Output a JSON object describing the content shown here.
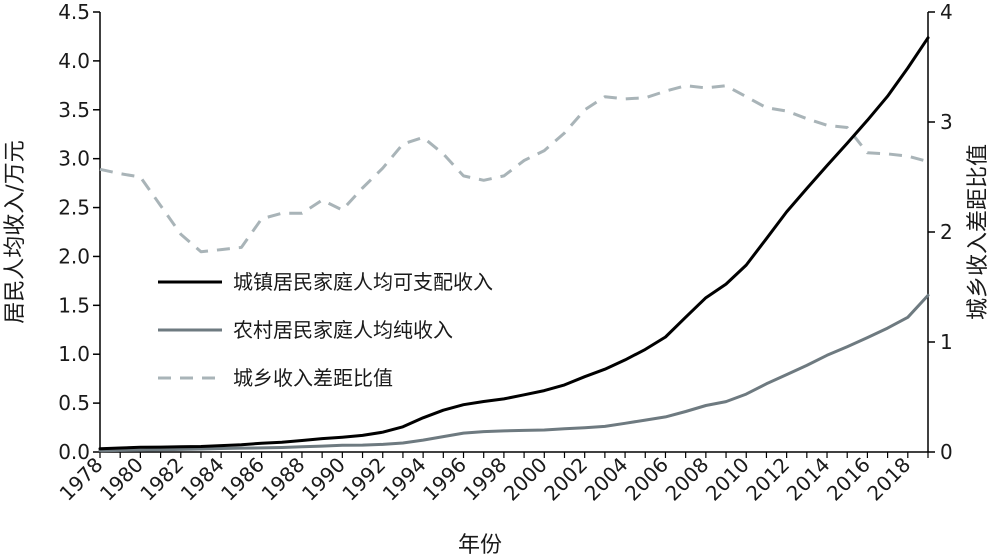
{
  "chart_data": {
    "type": "line",
    "xlabel": "年份",
    "ylabel_left": "居民人均收入/万元",
    "ylabel_right": "城乡收入差距比值",
    "ylim_left": [
      0,
      4.5
    ],
    "ylim_right": [
      0,
      4
    ],
    "xlim": [
      1978,
      2019
    ],
    "x_ticks": [
      1978,
      1980,
      1982,
      1984,
      1986,
      1988,
      1990,
      1992,
      1994,
      1996,
      1998,
      2000,
      2002,
      2004,
      2006,
      2008,
      2010,
      2012,
      2014,
      2016,
      2018
    ],
    "y_left_ticks": [
      "0.0",
      "0.5",
      "1.0",
      "1.5",
      "2.0",
      "2.5",
      "3.0",
      "3.5",
      "4.0",
      "4.5"
    ],
    "y_right_ticks": [
      "0",
      "1",
      "2",
      "3",
      "4"
    ],
    "grid": false,
    "legend_position": "center-left",
    "series": [
      {
        "name": "城镇居民家庭人均可支配收入",
        "axis": "left",
        "color": "#000000",
        "style": "solid",
        "x": [
          1978,
          1979,
          1980,
          1981,
          1982,
          1983,
          1984,
          1985,
          1986,
          1987,
          1988,
          1989,
          1990,
          1991,
          1992,
          1993,
          1994,
          1995,
          1996,
          1997,
          1998,
          1999,
          2000,
          2001,
          2002,
          2003,
          2004,
          2005,
          2006,
          2007,
          2008,
          2009,
          2010,
          2011,
          2012,
          2013,
          2014,
          2015,
          2016,
          2017,
          2018,
          2019
        ],
        "y": [
          0.034,
          0.041,
          0.048,
          0.05,
          0.053,
          0.056,
          0.065,
          0.074,
          0.09,
          0.1,
          0.118,
          0.137,
          0.151,
          0.17,
          0.203,
          0.258,
          0.35,
          0.428,
          0.484,
          0.516,
          0.543,
          0.585,
          0.628,
          0.686,
          0.77,
          0.847,
          0.942,
          1.049,
          1.176,
          1.379,
          1.578,
          1.717,
          1.911,
          2.181,
          2.456,
          2.695,
          2.929,
          3.158,
          3.392,
          3.639,
          3.927,
          4.236
        ]
      },
      {
        "name": "农村居民家庭人均纯收入",
        "axis": "left",
        "color": "#6e7a80",
        "style": "solid",
        "x": [
          1978,
          1979,
          1980,
          1981,
          1982,
          1983,
          1984,
          1985,
          1986,
          1987,
          1988,
          1989,
          1990,
          1991,
          1992,
          1993,
          1994,
          1995,
          1996,
          1997,
          1998,
          1999,
          2000,
          2001,
          2002,
          2003,
          2004,
          2005,
          2006,
          2007,
          2008,
          2009,
          2010,
          2011,
          2012,
          2013,
          2014,
          2015,
          2016,
          2017,
          2018,
          2019
        ],
        "y": [
          0.013,
          0.016,
          0.019,
          0.022,
          0.027,
          0.031,
          0.036,
          0.04,
          0.042,
          0.046,
          0.054,
          0.06,
          0.069,
          0.071,
          0.078,
          0.092,
          0.122,
          0.158,
          0.193,
          0.209,
          0.216,
          0.221,
          0.225,
          0.237,
          0.248,
          0.262,
          0.294,
          0.326,
          0.359,
          0.414,
          0.476,
          0.515,
          0.592,
          0.698,
          0.792,
          0.886,
          0.989,
          1.077,
          1.17,
          1.267,
          1.378,
          1.602
        ]
      },
      {
        "name": "城乡收入差距比值",
        "axis": "right",
        "color": "#a9b4b8",
        "style": "dashed",
        "x": [
          1978,
          1979,
          1980,
          1981,
          1982,
          1983,
          1984,
          1985,
          1986,
          1987,
          1988,
          1989,
          1990,
          1991,
          1992,
          1993,
          1994,
          1995,
          1996,
          1997,
          1998,
          1999,
          2000,
          2001,
          2002,
          2003,
          2004,
          2005,
          2006,
          2007,
          2008,
          2009,
          2010,
          2011,
          2012,
          2013,
          2014,
          2015,
          2016,
          2017,
          2018,
          2019
        ],
        "y": [
          2.57,
          2.53,
          2.5,
          2.24,
          1.98,
          1.82,
          1.84,
          1.86,
          2.12,
          2.17,
          2.17,
          2.29,
          2.2,
          2.4,
          2.58,
          2.8,
          2.86,
          2.71,
          2.51,
          2.47,
          2.51,
          2.65,
          2.74,
          2.9,
          3.11,
          3.23,
          3.21,
          3.22,
          3.28,
          3.33,
          3.31,
          3.33,
          3.23,
          3.13,
          3.1,
          3.03,
          2.97,
          2.95,
          2.72,
          2.71,
          2.69,
          2.64
        ]
      }
    ]
  }
}
